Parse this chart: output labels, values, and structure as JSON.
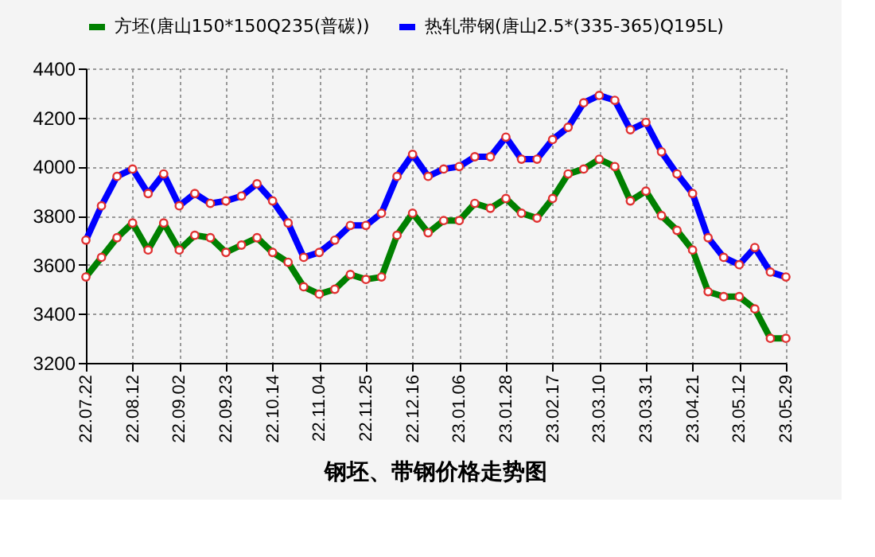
{
  "chart_data": {
    "type": "line",
    "title": "钢坯、带钢价格走势图",
    "categories": [
      "22.07.22",
      null,
      null,
      "22.08.12",
      null,
      null,
      "22.09.02",
      null,
      null,
      "22.09.23",
      null,
      null,
      "22.10.14",
      null,
      null,
      "22.11.04",
      null,
      null,
      "22.11.25",
      null,
      null,
      "22.12.16",
      null,
      null,
      "23.01.06",
      null,
      null,
      "23.01.28",
      null,
      null,
      "23.02.17",
      null,
      null,
      "23.03.10",
      null,
      null,
      "23.03.31",
      null,
      null,
      "23.04.21",
      null,
      null,
      "23.05.12",
      null,
      null,
      "23.05.29"
    ],
    "series": [
      {
        "name": "方坯(唐山150*150Q235(普碳))",
        "color": "#008000",
        "values": [
          3550,
          3630,
          3710,
          3770,
          3660,
          3770,
          3660,
          3720,
          3710,
          3650,
          3680,
          3710,
          3650,
          3610,
          3510,
          3480,
          3500,
          3560,
          3540,
          3550,
          3720,
          3810,
          3730,
          3780,
          3780,
          3850,
          3830,
          3870,
          3810,
          3790,
          3870,
          3970,
          3990,
          4030,
          4000,
          3860,
          3900,
          3800,
          3740,
          3660,
          3490,
          3470,
          3470,
          3420,
          3300,
          3300
        ]
      },
      {
        "name": "热轧带钢(唐山2.5*(335-365)Q195L)",
        "color": "#0000ff",
        "values": [
          3700,
          3840,
          3960,
          3990,
          3890,
          3970,
          3840,
          3890,
          3850,
          3860,
          3880,
          3930,
          3860,
          3770,
          3630,
          3650,
          3700,
          3760,
          3760,
          3810,
          3960,
          4050,
          3960,
          3990,
          4000,
          4040,
          4040,
          4120,
          4030,
          4030,
          4110,
          4160,
          4260,
          4290,
          4270,
          4150,
          4180,
          4060,
          3970,
          3890,
          3710,
          3630,
          3600,
          3670,
          3570,
          3550
        ]
      }
    ],
    "ylim": [
      3200,
      4400
    ],
    "yticks": [
      3200,
      3400,
      3600,
      3800,
      4000,
      4200,
      4400
    ],
    "grid": true,
    "legend": "top",
    "marker": "circle",
    "line_style": "solid"
  }
}
